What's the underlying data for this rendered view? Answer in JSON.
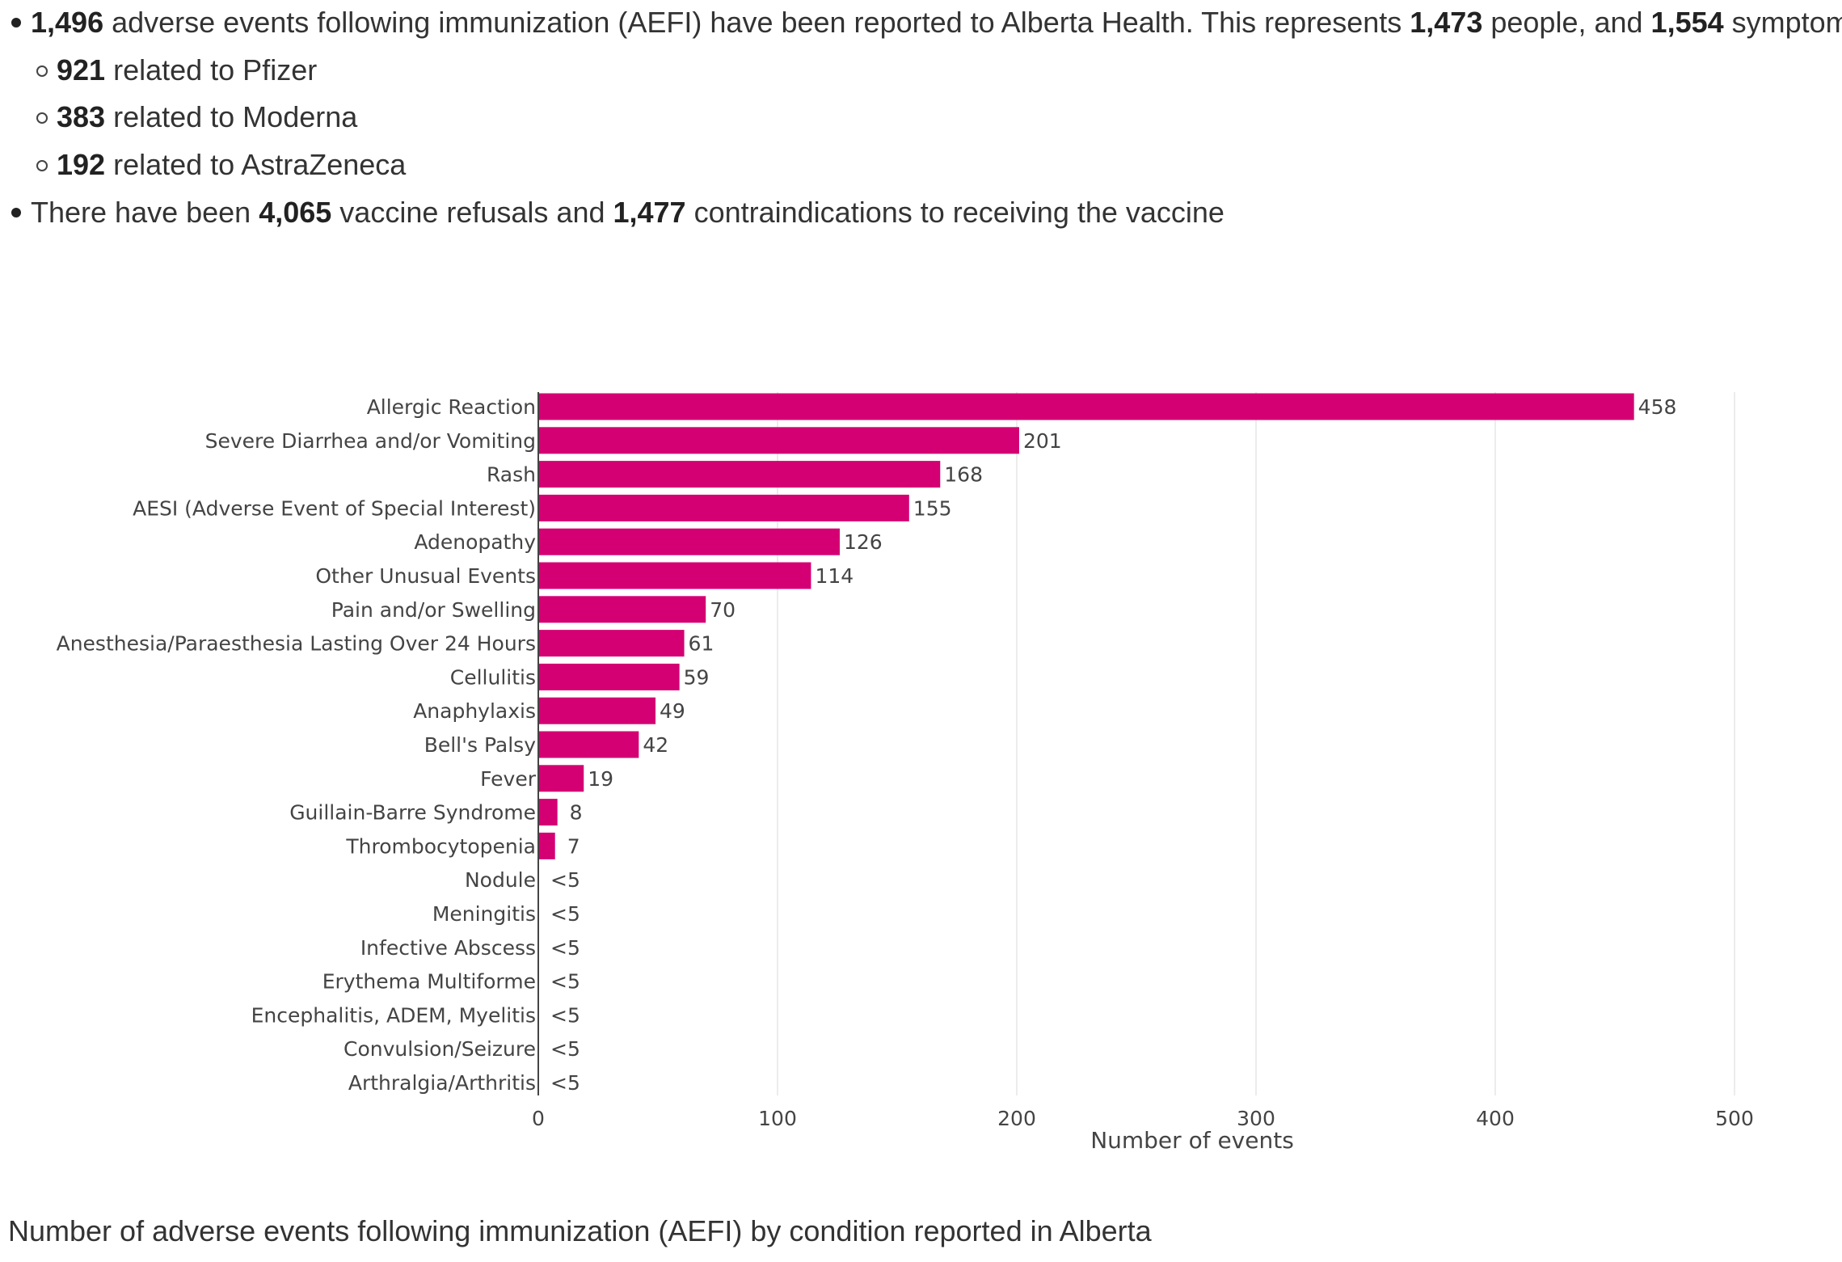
{
  "summary": {
    "line1": {
      "n1": "1,496",
      "t1": " adverse events following immunization (AEFI) have been reported to Alberta Health. This represents ",
      "n2": "1,473",
      "t2": " people, and ",
      "n3": "1,554",
      "t3": " symptoms."
    },
    "sub_items": [
      {
        "num": "921",
        "text": " related to Pfizer"
      },
      {
        "num": "383",
        "text": " related to Moderna"
      },
      {
        "num": "192",
        "text": " related to AstraZeneca"
      }
    ],
    "line2": {
      "t1": "There have been ",
      "n1": "4,065",
      "t2": " vaccine refusals and ",
      "n2": "1,477",
      "t3": " contraindications to receiving the vaccine"
    }
  },
  "chart_data": {
    "type": "bar",
    "orientation": "horizontal",
    "categories": [
      "Allergic Reaction",
      "Severe Diarrhea and/or Vomiting",
      "Rash",
      "AESI (Adverse Event of Special Interest)",
      "Adenopathy",
      "Other Unusual Events",
      "Pain and/or Swelling",
      "Anesthesia/Paraesthesia Lasting Over 24 Hours",
      "Cellulitis",
      "Anaphylaxis",
      "Bell's Palsy",
      "Fever",
      "Guillain-Barre Syndrome",
      "Thrombocytopenia",
      "Nodule",
      "Meningitis",
      "Infective Abscess",
      "Erythema Multiforme",
      "Encephalitis, ADEM, Myelitis",
      "Convulsion/Seizure",
      "Arthralgia/Arthritis"
    ],
    "values": [
      458,
      201,
      168,
      155,
      126,
      114,
      70,
      61,
      59,
      49,
      42,
      19,
      8,
      7,
      0,
      0,
      0,
      0,
      0,
      0,
      0
    ],
    "value_labels": [
      "458",
      "201",
      "168",
      "155",
      "126",
      "114",
      "70",
      "61",
      "59",
      "49",
      "42",
      "19",
      "8",
      "7",
      "<5",
      "<5",
      "<5",
      "<5",
      "<5",
      "<5",
      "<5"
    ],
    "xlabel": "Number of events",
    "ylabel": "",
    "xlim": [
      0,
      500
    ],
    "xticks": [
      "0",
      "100",
      "200",
      "300",
      "400",
      "500"
    ],
    "grid": true,
    "bar_color": "#d40073",
    "grid_color": "#e6e6e6"
  },
  "caption": "Number of adverse events following immunization (AEFI) by condition reported in Alberta"
}
